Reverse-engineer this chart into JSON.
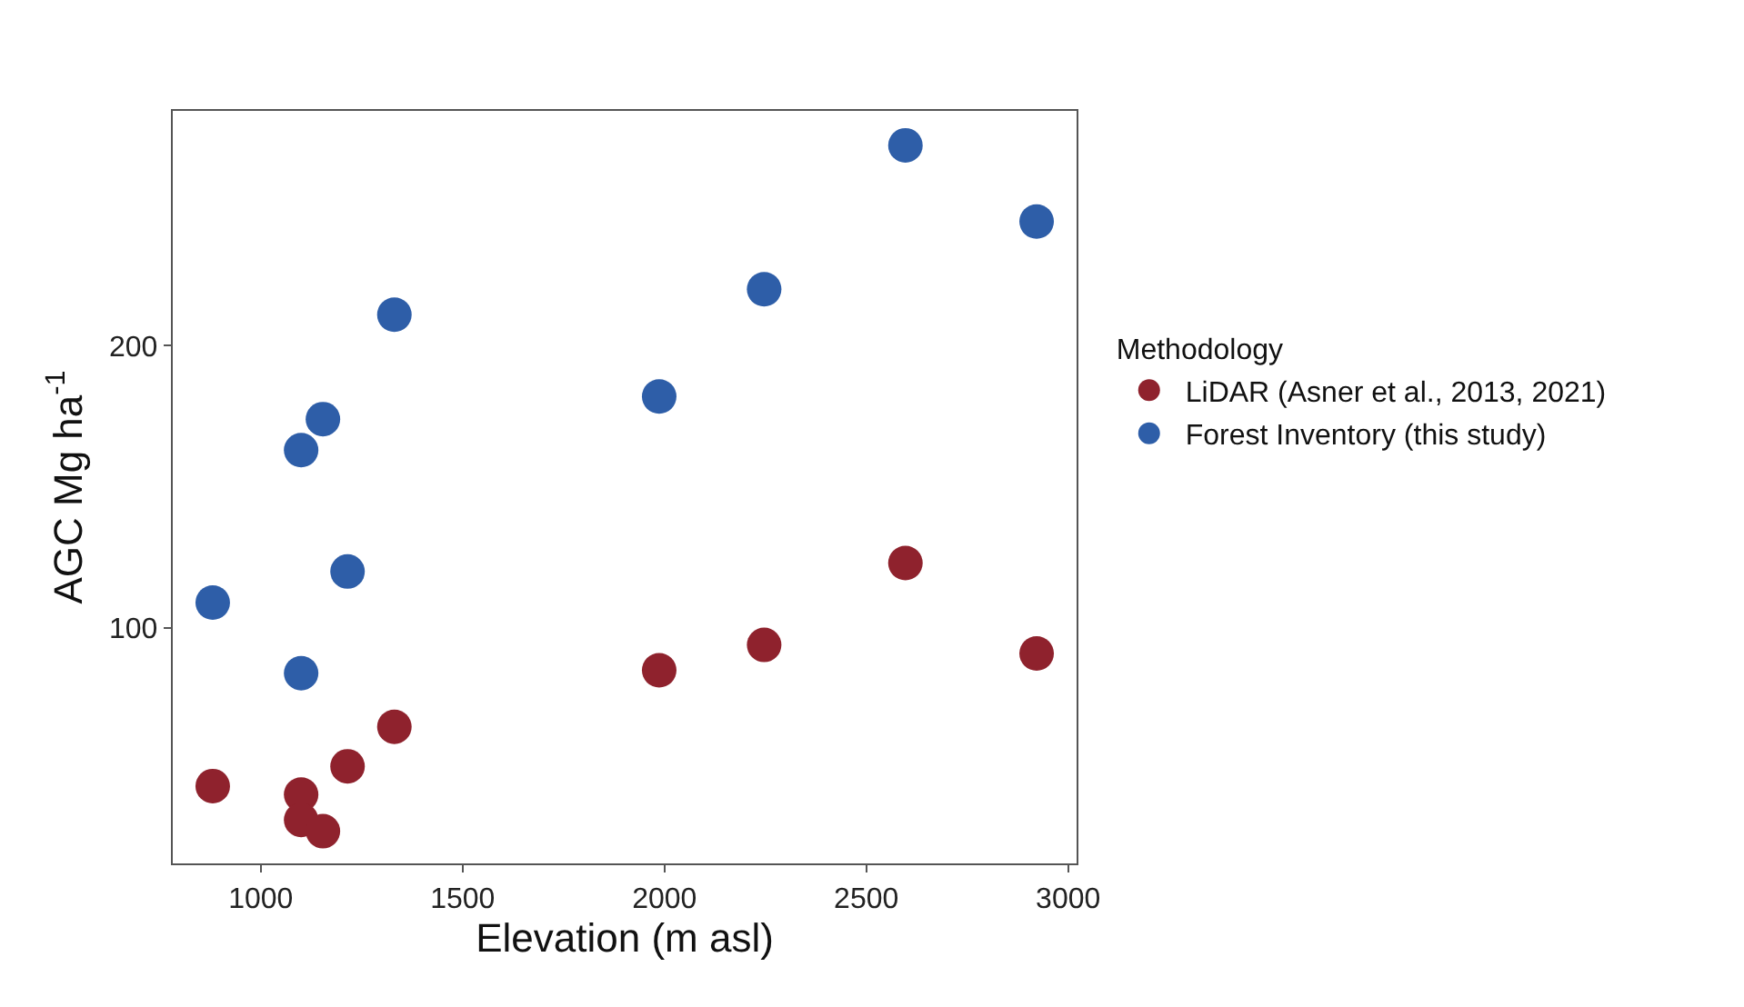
{
  "chart_data": {
    "type": "scatter",
    "xlabel": "Elevation (m asl)",
    "ylabel": "AGC Mg ha$^{-1}$",
    "legend_title": "Methodology",
    "x": [
      881,
      1100,
      1100,
      1154,
      1215,
      1331,
      1987,
      2247,
      2597,
      2922
    ],
    "series": [
      {
        "name": "LiDAR (Asner et al., 2013, 2021)",
        "color": "#8f222d",
        "values": [
          44,
          41,
          32,
          28,
          51,
          65,
          85,
          94,
          123,
          91
        ]
      },
      {
        "name": "Forest Inventory (this study)",
        "color": "#2e5ea8",
        "values": [
          109,
          163,
          84,
          174,
          120,
          211,
          182,
          220,
          271,
          244
        ]
      }
    ],
    "xlim": [
      782,
      3021
    ],
    "ylim": [
      16.6,
      283.2
    ],
    "xticks": [
      1000,
      1500,
      2000,
      2500,
      3000
    ],
    "yticks": [
      100,
      200
    ],
    "grid": false,
    "legend": "right",
    "marker": "circle"
  }
}
